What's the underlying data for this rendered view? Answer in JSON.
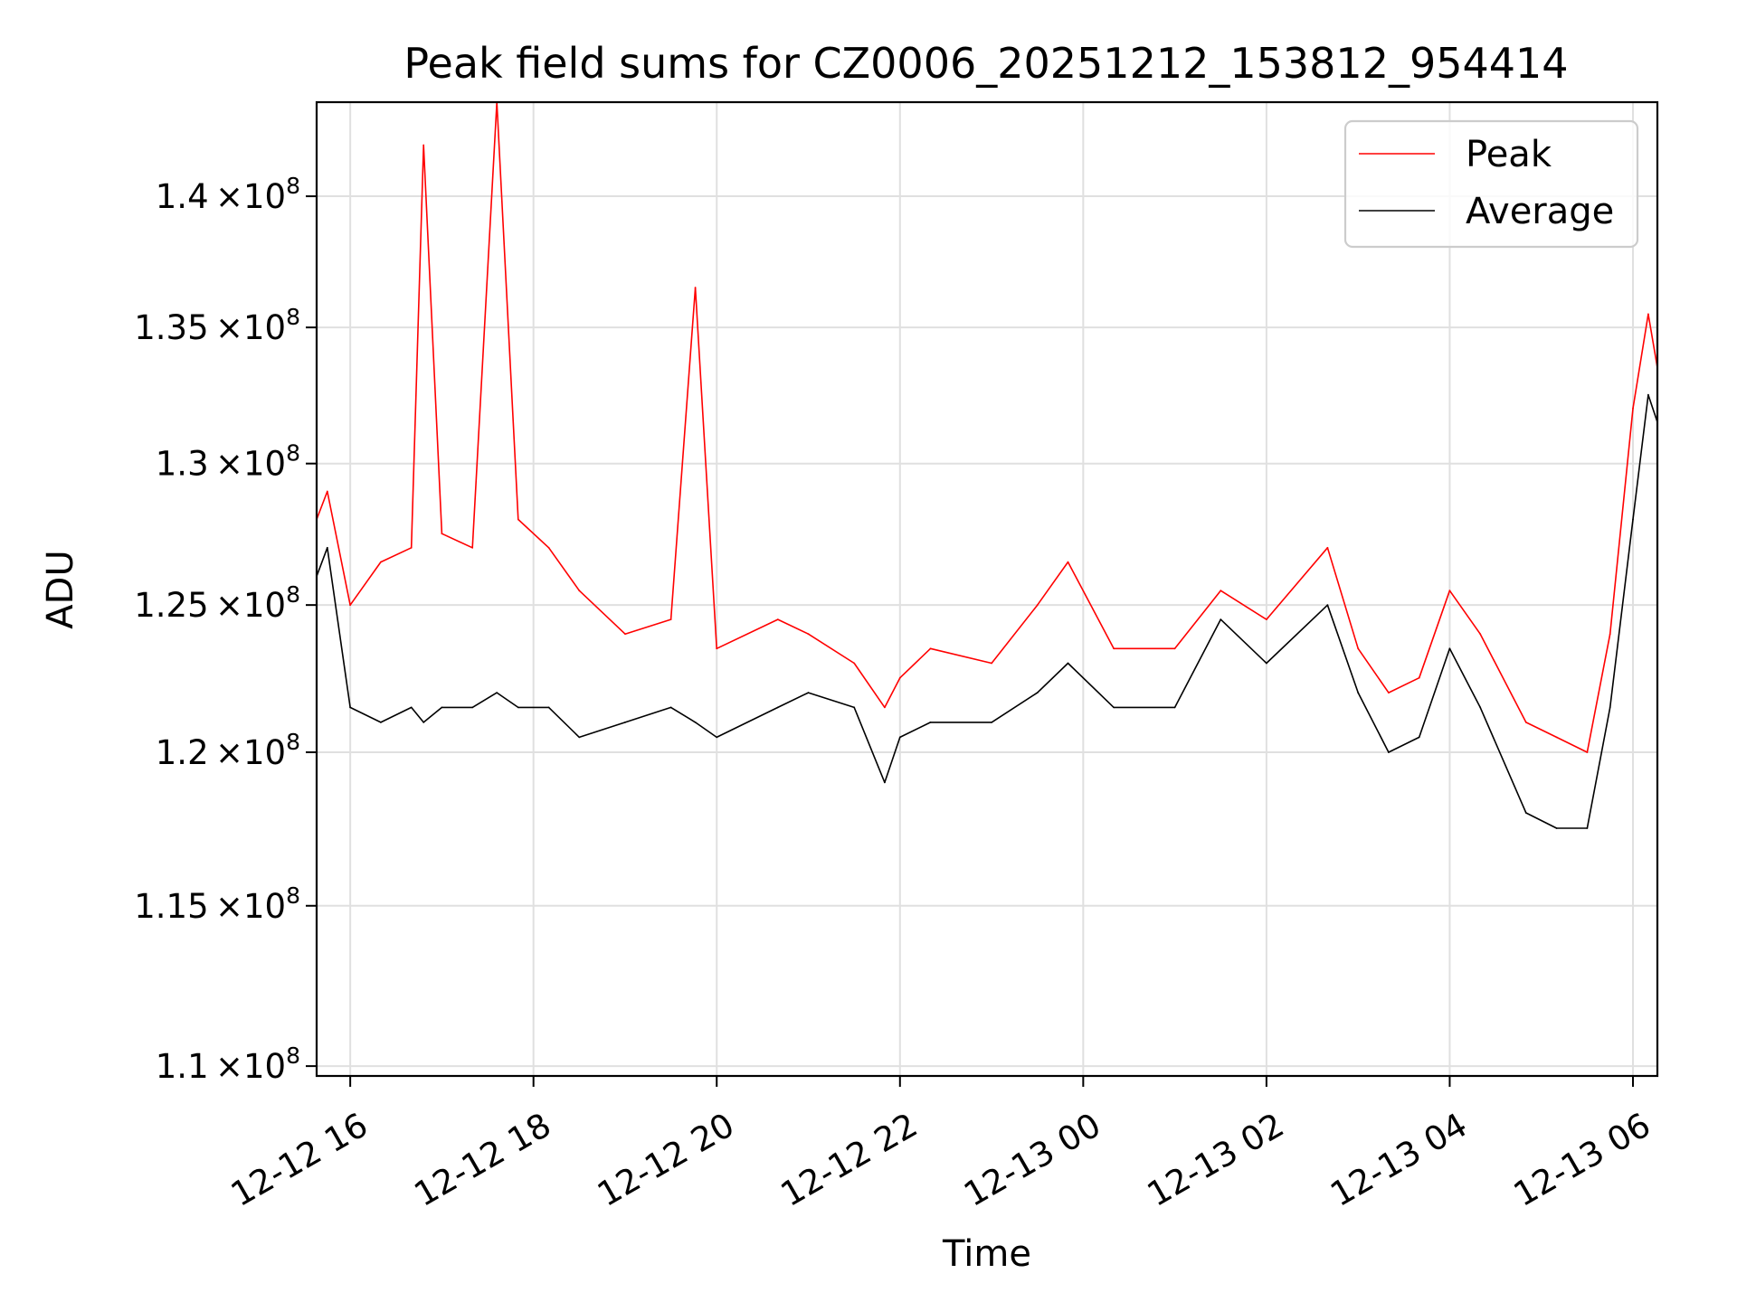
{
  "chart_data": {
    "type": "line",
    "title": "Peak field sums for CZ0006_20251212_153812_954414",
    "xlabel": "Time",
    "ylabel": "ADU",
    "xlim": [
      "2025-12-12 15:38",
      "2025-12-13 06:16"
    ],
    "ylim": [
      109700000,
      143700000
    ],
    "y_scale": "log",
    "grid": true,
    "legend_position": "top-right",
    "x_tick_labels": [
      "12-12 16",
      "12-12 18",
      "12-12 20",
      "12-12 22",
      "12-13 00",
      "12-13 02",
      "12-13 04",
      "12-13 06"
    ],
    "x_tick_values": [
      "2025-12-12 16:00",
      "2025-12-12 18:00",
      "2025-12-12 20:00",
      "2025-12-12 22:00",
      "2025-12-13 00:00",
      "2025-12-13 02:00",
      "2025-12-13 04:00",
      "2025-12-13 06:00"
    ],
    "y_ticks": [
      {
        "value": 110000000,
        "mantissa": "1.1",
        "exp": "8"
      },
      {
        "value": 115000000,
        "mantissa": "1.15",
        "exp": "8"
      },
      {
        "value": 120000000,
        "mantissa": "1.2",
        "exp": "8"
      },
      {
        "value": 125000000,
        "mantissa": "1.25",
        "exp": "8"
      },
      {
        "value": 130000000,
        "mantissa": "1.3",
        "exp": "8"
      },
      {
        "value": 135000000,
        "mantissa": "1.35",
        "exp": "8"
      },
      {
        "value": 140000000,
        "mantissa": "1.4",
        "exp": "8"
      }
    ],
    "tick_times_sep": "×10",
    "series": [
      {
        "name": "Peak",
        "color": "#ff0000",
        "x": [
          "2025-12-12 15:38",
          "2025-12-12 15:45",
          "2025-12-12 16:00",
          "2025-12-12 16:20",
          "2025-12-12 16:40",
          "2025-12-12 16:48",
          "2025-12-12 17:00",
          "2025-12-12 17:20",
          "2025-12-12 17:36",
          "2025-12-12 17:50",
          "2025-12-12 18:10",
          "2025-12-12 18:30",
          "2025-12-12 19:00",
          "2025-12-12 19:30",
          "2025-12-12 19:46",
          "2025-12-12 20:00",
          "2025-12-12 20:40",
          "2025-12-12 21:00",
          "2025-12-12 21:30",
          "2025-12-12 21:50",
          "2025-12-12 22:00",
          "2025-12-12 22:20",
          "2025-12-12 23:00",
          "2025-12-12 23:30",
          "2025-12-12 23:50",
          "2025-12-13 00:20",
          "2025-12-13 01:00",
          "2025-12-13 01:30",
          "2025-12-13 02:00",
          "2025-12-13 02:40",
          "2025-12-13 03:00",
          "2025-12-13 03:20",
          "2025-12-13 03:40",
          "2025-12-13 04:00",
          "2025-12-13 04:20",
          "2025-12-13 04:50",
          "2025-12-13 05:10",
          "2025-12-13 05:30",
          "2025-12-13 05:45",
          "2025-12-13 06:00",
          "2025-12-13 06:10",
          "2025-12-13 06:16"
        ],
        "values": [
          128000000,
          129000000,
          125000000,
          126500000,
          127000000,
          142000000,
          127500000,
          127000000,
          143700000,
          128000000,
          127000000,
          125500000,
          124000000,
          124500000,
          136500000,
          123500000,
          124500000,
          124000000,
          123000000,
          121500000,
          122500000,
          123500000,
          123000000,
          125000000,
          126500000,
          123500000,
          123500000,
          125500000,
          124500000,
          127000000,
          123500000,
          122000000,
          122500000,
          125500000,
          124000000,
          121000000,
          120500000,
          120000000,
          124000000,
          132000000,
          135500000,
          133500000
        ]
      },
      {
        "name": "Average",
        "color": "#000000",
        "x": [
          "2025-12-12 15:38",
          "2025-12-12 15:45",
          "2025-12-12 16:00",
          "2025-12-12 16:20",
          "2025-12-12 16:40",
          "2025-12-12 16:48",
          "2025-12-12 17:00",
          "2025-12-12 17:20",
          "2025-12-12 17:36",
          "2025-12-12 17:50",
          "2025-12-12 18:10",
          "2025-12-12 18:30",
          "2025-12-12 19:00",
          "2025-12-12 19:30",
          "2025-12-12 19:46",
          "2025-12-12 20:00",
          "2025-12-12 20:40",
          "2025-12-12 21:00",
          "2025-12-12 21:30",
          "2025-12-12 21:50",
          "2025-12-12 22:00",
          "2025-12-12 22:20",
          "2025-12-12 23:00",
          "2025-12-12 23:30",
          "2025-12-12 23:50",
          "2025-12-13 00:20",
          "2025-12-13 01:00",
          "2025-12-13 01:30",
          "2025-12-13 02:00",
          "2025-12-13 02:40",
          "2025-12-13 03:00",
          "2025-12-13 03:20",
          "2025-12-13 03:40",
          "2025-12-13 04:00",
          "2025-12-13 04:20",
          "2025-12-13 04:50",
          "2025-12-13 05:10",
          "2025-12-13 05:30",
          "2025-12-13 05:45",
          "2025-12-13 06:00",
          "2025-12-13 06:10",
          "2025-12-13 06:16"
        ],
        "values": [
          126000000,
          127000000,
          121500000,
          121000000,
          121500000,
          121000000,
          121500000,
          121500000,
          122000000,
          121500000,
          121500000,
          120500000,
          121000000,
          121500000,
          121000000,
          120500000,
          121500000,
          122000000,
          121500000,
          119000000,
          120500000,
          121000000,
          121000000,
          122000000,
          123000000,
          121500000,
          121500000,
          124500000,
          123000000,
          125000000,
          122000000,
          120000000,
          120500000,
          123500000,
          121500000,
          118000000,
          117500000,
          117500000,
          121500000,
          128000000,
          132500000,
          131500000
        ]
      }
    ]
  }
}
